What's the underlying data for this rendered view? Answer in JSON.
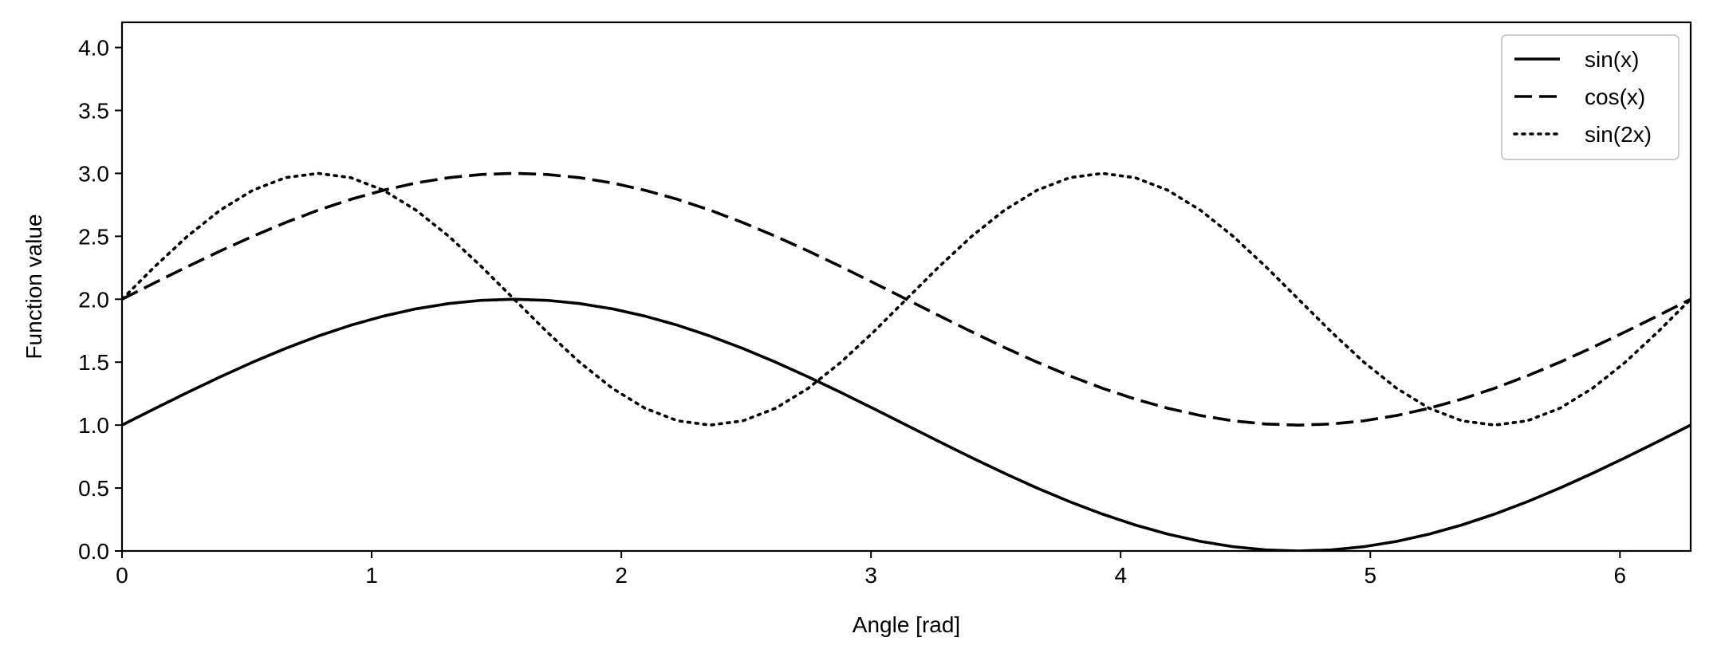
{
  "chart_data": {
    "type": "line",
    "title": "",
    "xlabel": "Angle [rad]",
    "ylabel": "Function value",
    "xlim": [
      0,
      6.2832
    ],
    "ylim": [
      0,
      4.2
    ],
    "xticks": [
      0,
      1,
      2,
      3,
      4,
      5,
      6
    ],
    "xtick_labels": [
      "0",
      "1",
      "2",
      "3",
      "4",
      "5",
      "6"
    ],
    "yticks": [
      0.0,
      0.5,
      1.0,
      1.5,
      2.0,
      2.5,
      3.0,
      3.5,
      4.0
    ],
    "ytick_labels": [
      "0.0",
      "0.5",
      "1.0",
      "1.5",
      "2.0",
      "2.5",
      "3.0",
      "3.5",
      "4.0"
    ],
    "grid": false,
    "legend_position": "top-right",
    "x": [
      0.0,
      0.1309,
      0.2618,
      0.3927,
      0.5236,
      0.6545,
      0.7854,
      0.9163,
      1.0472,
      1.1781,
      1.309,
      1.4399,
      1.5708,
      1.7017,
      1.8326,
      1.9635,
      2.0944,
      2.2253,
      2.3562,
      2.4871,
      2.618,
      2.7489,
      2.8798,
      3.0107,
      3.1416,
      3.2725,
      3.4034,
      3.5343,
      3.6652,
      3.7961,
      3.927,
      4.0579,
      4.1888,
      4.3197,
      4.4506,
      4.5815,
      4.7124,
      4.8433,
      4.9742,
      5.1051,
      5.236,
      5.3669,
      5.4978,
      5.6287,
      5.7596,
      5.8905,
      6.0214,
      6.1523,
      6.2832
    ],
    "series": [
      {
        "name": "sin(x)",
        "style": "solid",
        "color": "#000000",
        "values": [
          1.0,
          1.1305,
          1.2588,
          1.3827,
          1.5,
          1.6088,
          1.7071,
          1.7934,
          1.866,
          1.9239,
          1.9659,
          1.9914,
          2.0,
          1.9914,
          1.9659,
          1.9239,
          1.866,
          1.7934,
          1.7071,
          1.6088,
          1.5,
          1.3827,
          1.2588,
          1.1305,
          1.0,
          0.8695,
          0.7412,
          0.6173,
          0.5,
          0.3912,
          0.2929,
          0.2066,
          0.134,
          0.0761,
          0.0341,
          0.0086,
          0.0,
          0.0086,
          0.0341,
          0.0761,
          0.134,
          0.2066,
          0.2929,
          0.3912,
          0.5,
          0.6173,
          0.7412,
          0.8695,
          1.0
        ]
      },
      {
        "name": "cos(x)",
        "style": "dashed",
        "color": "#000000",
        "values": [
          2.0,
          2.1305,
          2.2588,
          2.3827,
          2.5,
          2.6088,
          2.7071,
          2.7934,
          2.866,
          2.9239,
          2.9659,
          2.9914,
          3.0,
          2.9914,
          2.9659,
          2.9239,
          2.866,
          2.7934,
          2.7071,
          2.6088,
          2.5,
          2.3827,
          2.2588,
          2.1305,
          2.0,
          1.8695,
          1.7412,
          1.6173,
          1.5,
          1.3912,
          1.2929,
          1.2066,
          1.134,
          1.0761,
          1.0341,
          1.0086,
          1.0,
          1.0086,
          1.0341,
          1.0761,
          1.134,
          1.2066,
          1.2929,
          1.3912,
          1.5,
          1.6173,
          1.7412,
          1.8695,
          2.0
        ]
      },
      {
        "name": "sin(2x)",
        "style": "dotted",
        "color": "#000000",
        "values": [
          2.0,
          2.2588,
          2.5,
          2.7071,
          2.866,
          2.9659,
          3.0,
          2.9659,
          2.866,
          2.7071,
          2.5,
          2.2588,
          2.0,
          1.7412,
          1.5,
          1.2929,
          1.134,
          1.0341,
          1.0,
          1.0341,
          1.134,
          1.2929,
          1.5,
          1.7412,
          2.0,
          2.2588,
          2.5,
          2.7071,
          2.866,
          2.9659,
          3.0,
          2.9659,
          2.866,
          2.7071,
          2.5,
          2.2588,
          2.0,
          1.7412,
          1.5,
          1.2929,
          1.134,
          1.0341,
          1.0,
          1.0341,
          1.134,
          1.2929,
          1.5,
          1.7412,
          2.0
        ]
      }
    ]
  }
}
